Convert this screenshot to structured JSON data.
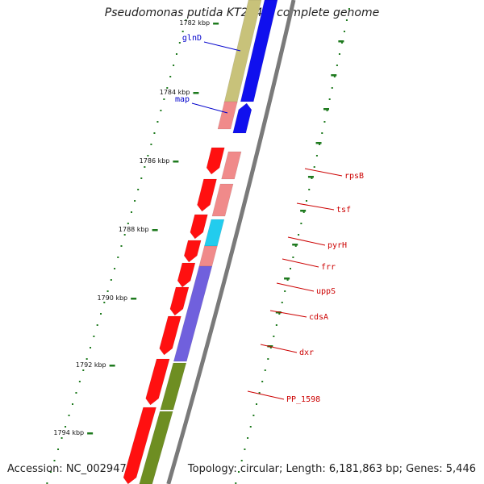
{
  "title": "Pseudomonas putida KT2440, complete genome",
  "footer": {
    "accession": "Accession: NC_002947",
    "topology": "Topology: circular; Length: 6,181,863 bp; Genes: 5,446"
  },
  "colors": {
    "backbone": "#7a7a7a",
    "tick": "#1e7a1e",
    "label_forward": "#0000cc",
    "label_reverse": "#cc0000",
    "gene_red": "#ff1010",
    "gene_pink": "#f08a8a",
    "gene_blue": "#1010ee",
    "gene_olive": "#c8c27a",
    "gene_cyan": "#22ccee",
    "gene_purple": "#7060dd",
    "gene_green": "#6e8e22"
  },
  "ticks": [
    {
      "label": "1782 kbp"
    },
    {
      "label": "1784 kbp"
    },
    {
      "label": "1786 kbp"
    },
    {
      "label": "1788 kbp"
    },
    {
      "label": "1790 kbp"
    },
    {
      "label": "1792 kbp"
    },
    {
      "label": "1794 kbp"
    }
  ],
  "gene_labels": [
    {
      "text": "glnD",
      "strand": "forward"
    },
    {
      "text": "map",
      "strand": "forward"
    },
    {
      "text": "rpsB",
      "strand": "reverse"
    },
    {
      "text": "tsf",
      "strand": "reverse"
    },
    {
      "text": "pyrH",
      "strand": "reverse"
    },
    {
      "text": "frr",
      "strand": "reverse"
    },
    {
      "text": "uppS",
      "strand": "reverse"
    },
    {
      "text": "cdsA",
      "strand": "reverse"
    },
    {
      "text": "dxr",
      "strand": "reverse"
    },
    {
      "text": "PP_1598",
      "strand": "reverse"
    }
  ]
}
